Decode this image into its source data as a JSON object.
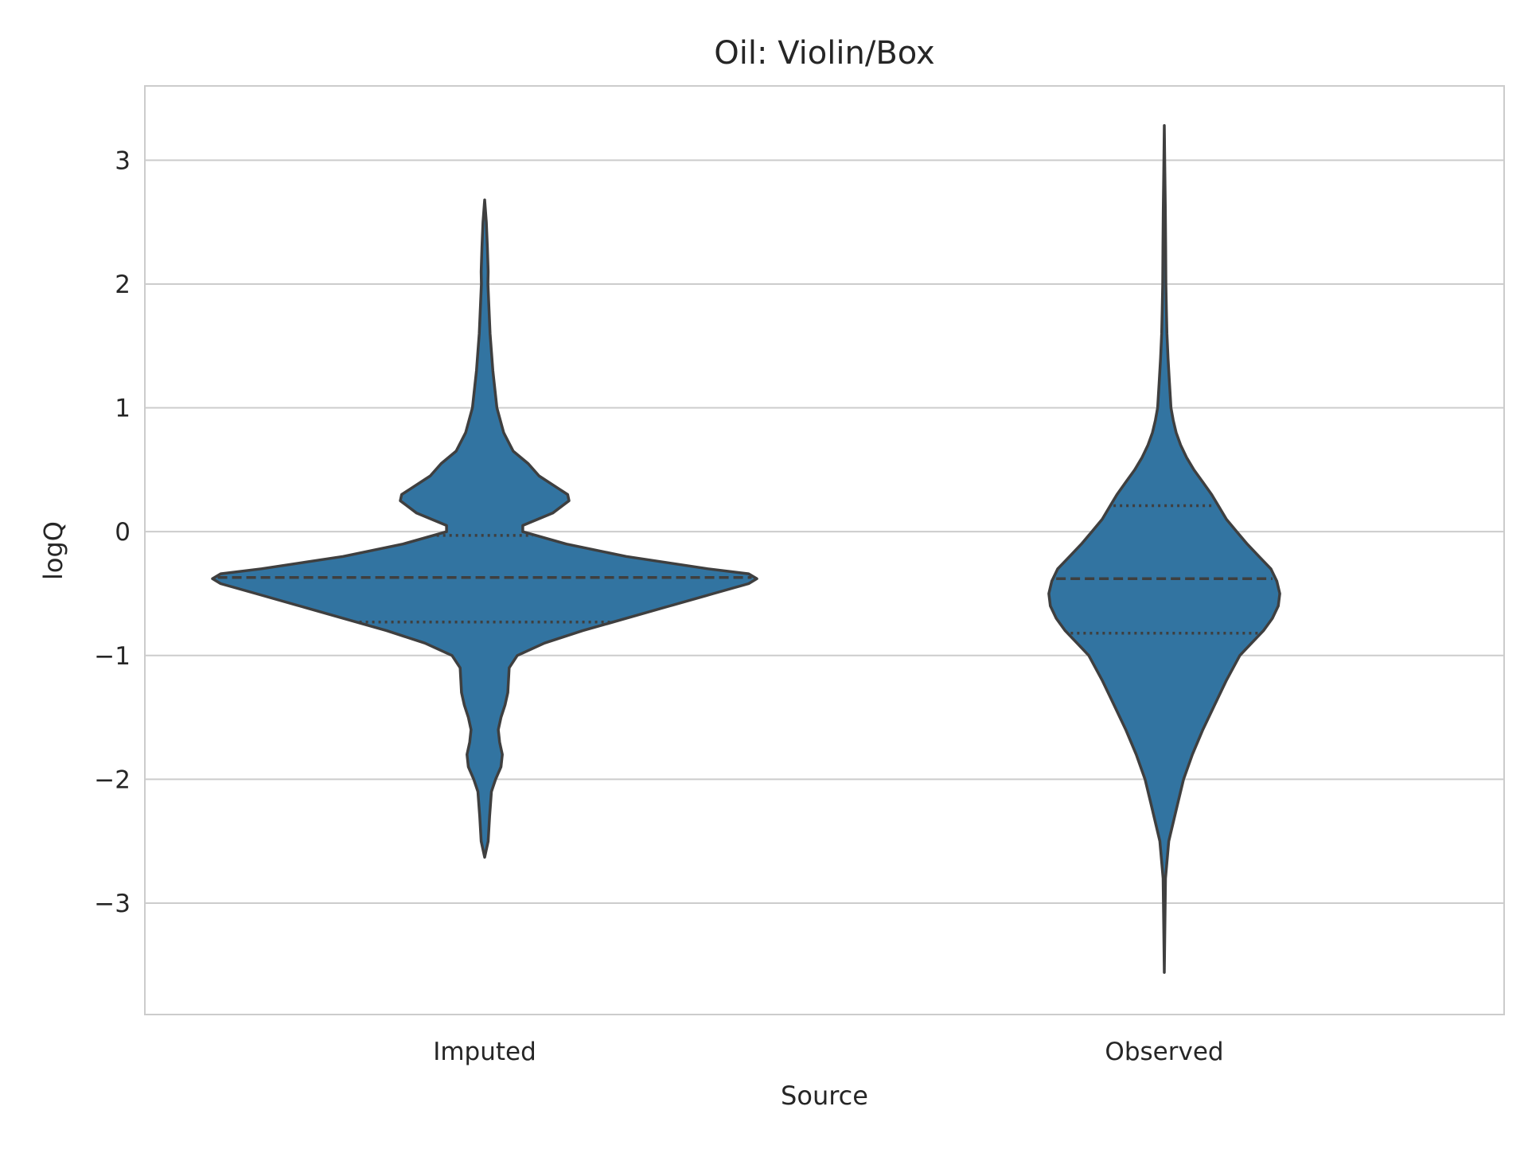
{
  "chart_data": {
    "type": "violin",
    "title": "Oil: Violin/Box",
    "xlabel": "Source",
    "ylabel": "logQ",
    "ylim": [
      -3.9,
      3.6
    ],
    "yticks": [
      3,
      2,
      1,
      0,
      -1,
      -2,
      -3
    ],
    "ytick_labels": [
      "3",
      "2",
      "1",
      "0",
      "−1",
      "−2",
      "−3"
    ],
    "grid": "y",
    "categories": [
      "Imputed",
      "Observed"
    ],
    "fill_color": "#3274a1",
    "edge_color": "#3f3f3f",
    "series": [
      {
        "category": "Imputed",
        "min": -2.63,
        "max": 2.68,
        "q1": -0.73,
        "median": -0.37,
        "q3": -0.03,
        "density": [
          [
            -2.63,
            0.0
          ],
          [
            -2.5,
            0.013
          ],
          [
            -2.3,
            0.018
          ],
          [
            -2.1,
            0.025
          ],
          [
            -2.0,
            0.04
          ],
          [
            -1.9,
            0.06
          ],
          [
            -1.8,
            0.065
          ],
          [
            -1.7,
            0.055
          ],
          [
            -1.6,
            0.05
          ],
          [
            -1.5,
            0.06
          ],
          [
            -1.4,
            0.075
          ],
          [
            -1.3,
            0.085
          ],
          [
            -1.1,
            0.09
          ],
          [
            -1.0,
            0.12
          ],
          [
            -0.9,
            0.22
          ],
          [
            -0.8,
            0.36
          ],
          [
            -0.7,
            0.52
          ],
          [
            -0.6,
            0.68
          ],
          [
            -0.5,
            0.84
          ],
          [
            -0.42,
            0.97
          ],
          [
            -0.38,
            1.0
          ],
          [
            -0.34,
            0.97
          ],
          [
            -0.3,
            0.82
          ],
          [
            -0.2,
            0.52
          ],
          [
            -0.1,
            0.3
          ],
          [
            0.0,
            0.14
          ],
          [
            0.05,
            0.14
          ],
          [
            0.15,
            0.25
          ],
          [
            0.25,
            0.31
          ],
          [
            0.3,
            0.305
          ],
          [
            0.35,
            0.27
          ],
          [
            0.45,
            0.2
          ],
          [
            0.55,
            0.16
          ],
          [
            0.65,
            0.105
          ],
          [
            0.8,
            0.07
          ],
          [
            1.0,
            0.045
          ],
          [
            1.3,
            0.03
          ],
          [
            1.6,
            0.02
          ],
          [
            2.0,
            0.012
          ],
          [
            2.1,
            0.013
          ],
          [
            2.3,
            0.01
          ],
          [
            2.5,
            0.006
          ],
          [
            2.68,
            0.0
          ]
        ]
      },
      {
        "category": "Observed",
        "min": -3.56,
        "max": 3.28,
        "q1": -0.82,
        "median": -0.38,
        "q3": 0.21,
        "density": [
          [
            -3.56,
            0.0
          ],
          [
            -3.2,
            0.004
          ],
          [
            -2.8,
            0.008
          ],
          [
            -2.5,
            0.03
          ],
          [
            -2.2,
            0.09
          ],
          [
            -2.0,
            0.13
          ],
          [
            -1.8,
            0.19
          ],
          [
            -1.6,
            0.26
          ],
          [
            -1.4,
            0.34
          ],
          [
            -1.2,
            0.42
          ],
          [
            -1.0,
            0.51
          ],
          [
            -0.9,
            0.59
          ],
          [
            -0.8,
            0.67
          ],
          [
            -0.7,
            0.73
          ],
          [
            -0.6,
            0.77
          ],
          [
            -0.5,
            0.78
          ],
          [
            -0.4,
            0.76
          ],
          [
            -0.3,
            0.72
          ],
          [
            -0.2,
            0.64
          ],
          [
            -0.1,
            0.56
          ],
          [
            0.0,
            0.49
          ],
          [
            0.1,
            0.42
          ],
          [
            0.2,
            0.37
          ],
          [
            0.3,
            0.32
          ],
          [
            0.4,
            0.26
          ],
          [
            0.5,
            0.2
          ],
          [
            0.6,
            0.15
          ],
          [
            0.7,
            0.11
          ],
          [
            0.8,
            0.08
          ],
          [
            0.9,
            0.06
          ],
          [
            1.0,
            0.045
          ],
          [
            1.2,
            0.035
          ],
          [
            1.4,
            0.025
          ],
          [
            1.6,
            0.018
          ],
          [
            1.8,
            0.014
          ],
          [
            2.0,
            0.011
          ],
          [
            2.3,
            0.009
          ],
          [
            2.6,
            0.007
          ],
          [
            2.9,
            0.004
          ],
          [
            3.28,
            0.0
          ]
        ]
      }
    ]
  }
}
